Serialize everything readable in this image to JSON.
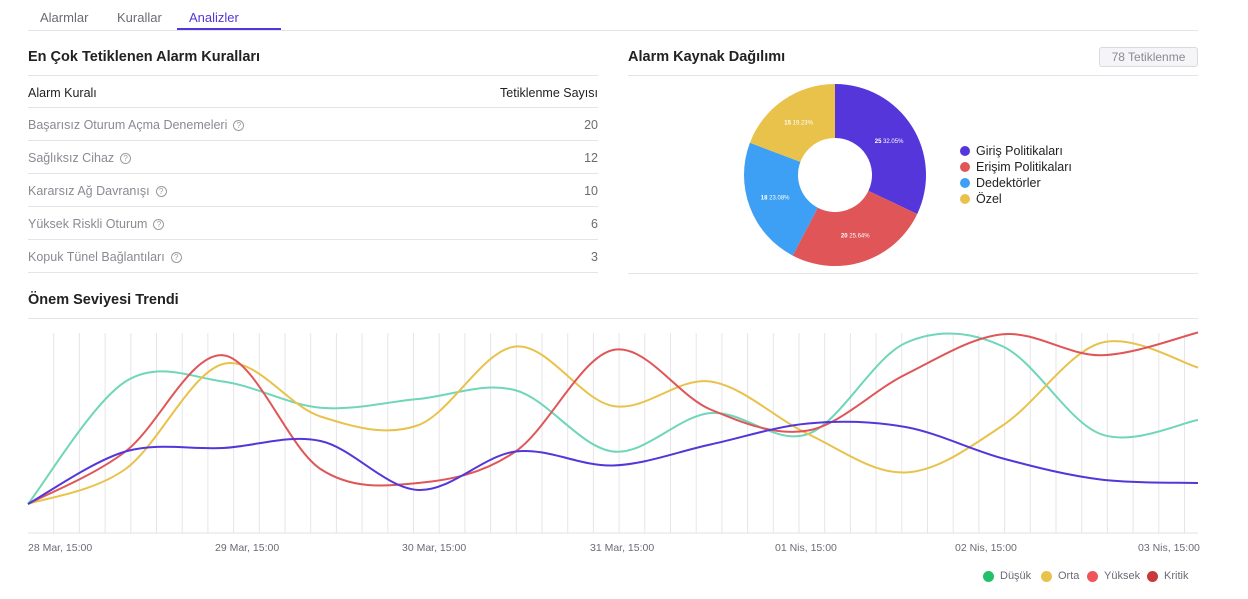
{
  "tabs": [
    {
      "label": "Alarmlar"
    },
    {
      "label": "Kurallar"
    },
    {
      "label": "Analizler"
    }
  ],
  "top_rules": {
    "title": "En Çok Tetiklenen Alarm Kuralları",
    "col_rule": "Alarm Kuralı",
    "col_count": "Tetiklenme Sayısı",
    "rows": [
      {
        "name": "Başarısız Oturum Açma Denemeleri",
        "count": "20"
      },
      {
        "name": "Sağlıksız Cihaz",
        "count": "12"
      },
      {
        "name": "Kararsız Ağ Davranışı",
        "count": "10"
      },
      {
        "name": "Yüksek Riskli Oturum",
        "count": "6"
      },
      {
        "name": "Kopuk Tünel Bağlantıları",
        "count": "3"
      }
    ],
    "help_icon": "question-circle-icon"
  },
  "source_dist": {
    "title": "Alarm Kaynak Dağılımı",
    "badge": "78 Tetiklenme"
  },
  "chart_data": [
    {
      "type": "pie",
      "donut": true,
      "categories": [
        "Giriş Politikaları",
        "Erişim Politikaları",
        "Dedektörler",
        "Özel"
      ],
      "values": [
        25,
        20,
        18,
        15
      ],
      "percent_labels": [
        "32.05%",
        "25.64%",
        "23.08%",
        "19.23%"
      ],
      "colors": [
        "#5436da",
        "#e05658",
        "#3da0f5",
        "#e9c24c"
      ],
      "legend": "right"
    },
    {
      "type": "line",
      "title": "Önem Seviyesi Trendi",
      "x_ticks": [
        "28 Mar, 15:00",
        "29 Mar, 15:00",
        "30 Mar, 15:00",
        "31 Mar, 15:00",
        "01 Nis, 15:00",
        "02 Nis, 15:00",
        "03 Nis, 15:00"
      ],
      "grid": "vertical",
      "legend": "bottom-right",
      "series": [
        {
          "name": "Düşük",
          "color": "#6fd6b9",
          "values": [
            0,
            7,
            7,
            5.5,
            6,
            6.5,
            3,
            5.2,
            4,
            9.2,
            9,
            4,
            4.8
          ]
        },
        {
          "name": "Orta",
          "color": "#e9c24c",
          "values": [
            0,
            2,
            8,
            5,
            4.5,
            9,
            5.6,
            7,
            4,
            1.8,
            4.5,
            9.2,
            7.8
          ]
        },
        {
          "name": "Yüksek",
          "color": "#e05658",
          "values": [
            0,
            3,
            8.5,
            2,
            1.2,
            3,
            8.8,
            5.4,
            4.2,
            7.4,
            9.7,
            8.5,
            9.8
          ]
        },
        {
          "name": "Kritik",
          "color": "#e05658",
          "values": [
            0,
            3,
            3.2,
            3.6,
            0.8,
            3,
            2.2,
            3.4,
            4.6,
            4.4,
            2.6,
            1.4,
            1.2
          ]
        }
      ],
      "legend_items": [
        {
          "name": "Düşük",
          "color": "#22c06b"
        },
        {
          "name": "Orta",
          "color": "#e9c24c"
        },
        {
          "name": "Yüksek",
          "color": "#f0545a"
        },
        {
          "name": "Kritik",
          "color": "#c73a3a"
        }
      ]
    }
  ],
  "trend": {
    "title": "Önem Seviyesi Trendi"
  }
}
